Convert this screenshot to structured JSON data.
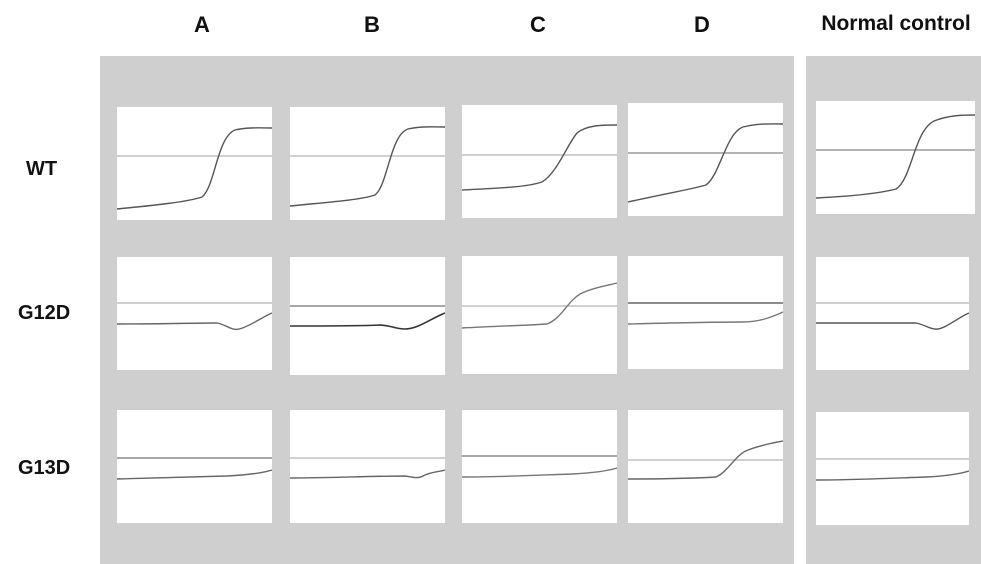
{
  "columns": [
    "A",
    "B",
    "C",
    "D",
    "Normal control"
  ],
  "rows": [
    "WT",
    "G12D",
    "G13D"
  ],
  "colors": {
    "panel_background": "#cfcfcf",
    "cell_background": "#ffffff",
    "threshold_line": "#b5b5b5",
    "curve": "#555555"
  }
}
